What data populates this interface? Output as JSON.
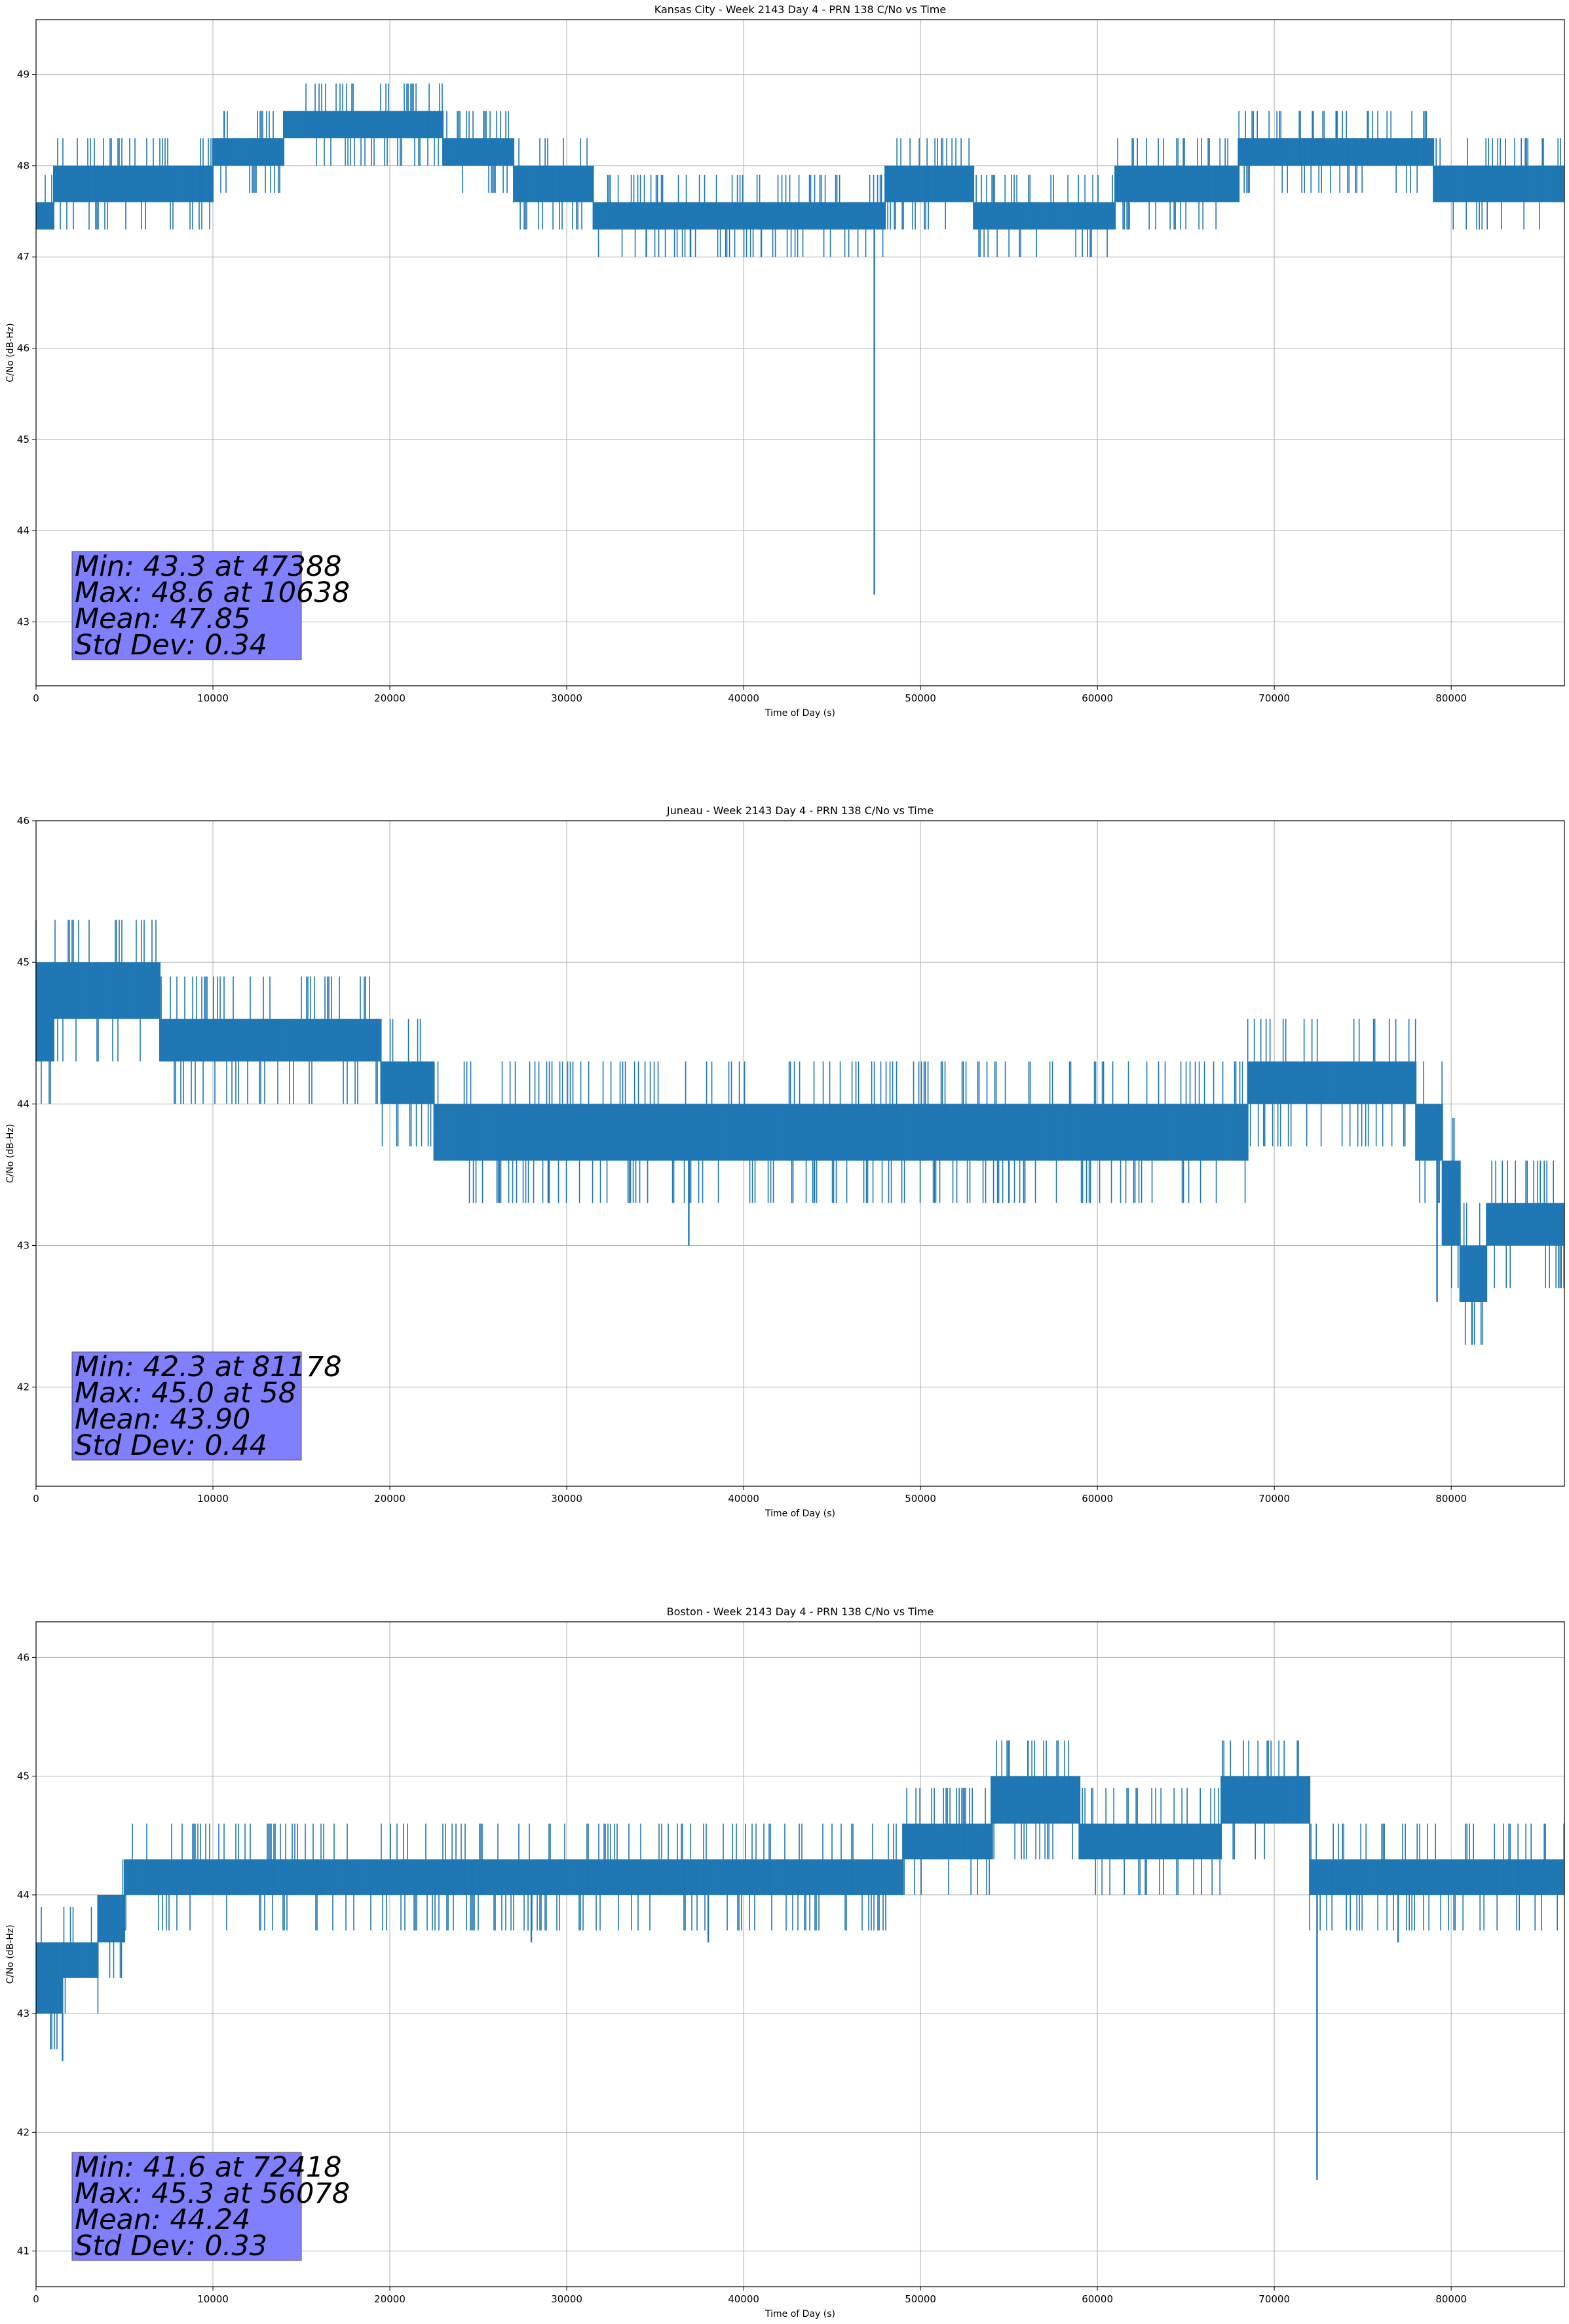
{
  "chart_data": [
    {
      "type": "line",
      "title": "Kansas City - Week 2143 Day 4 - PRN 138 C/No vs Time",
      "xlabel": "Time of Day (s)",
      "ylabel": "C/No (dB-Hz)",
      "xlim": [
        0,
        86400
      ],
      "ylim": [
        42.3,
        49.6
      ],
      "xticks": [
        0,
        10000,
        20000,
        30000,
        40000,
        50000,
        60000,
        70000,
        80000
      ],
      "yticks": [
        43,
        44,
        45,
        46,
        47,
        48,
        49
      ],
      "grid": true,
      "series_color": "#1f77b4",
      "stats": [
        "Min: 43.3 at 47388",
        "Max: 48.6 at 10638",
        "Mean: 47.85",
        "Std Dev: 0.34"
      ],
      "bands": [
        {
          "x": [
            0,
            1000
          ],
          "low": 47.3,
          "high": 47.6
        },
        {
          "x": [
            1000,
            10000
          ],
          "low": 47.6,
          "high": 48.0
        },
        {
          "x": [
            10000,
            14000
          ],
          "low": 48.0,
          "high": 48.3
        },
        {
          "x": [
            14000,
            23000
          ],
          "low": 48.3,
          "high": 48.6
        },
        {
          "x": [
            23000,
            27000
          ],
          "low": 48.0,
          "high": 48.3
        },
        {
          "x": [
            27000,
            31500
          ],
          "low": 47.6,
          "high": 48.0
        },
        {
          "x": [
            31500,
            48000
          ],
          "low": 47.3,
          "high": 47.6
        },
        {
          "x": [
            48000,
            53000
          ],
          "low": 47.6,
          "high": 48.0
        },
        {
          "x": [
            53000,
            61000
          ],
          "low": 47.3,
          "high": 47.6
        },
        {
          "x": [
            61000,
            68000
          ],
          "low": 47.6,
          "high": 48.0
        },
        {
          "x": [
            68000,
            79000
          ],
          "low": 48.0,
          "high": 48.3
        },
        {
          "x": [
            79000,
            86400
          ],
          "low": 47.6,
          "high": 48.0
        }
      ],
      "spikes": [
        {
          "x": 47388,
          "y": 43.3
        },
        {
          "x": 10638,
          "y": 48.6
        },
        {
          "x": 34500,
          "y": 47.0
        },
        {
          "x": 37000,
          "y": 47.0
        },
        {
          "x": 41000,
          "y": 47.0
        },
        {
          "x": 73500,
          "y": 48.6
        }
      ]
    },
    {
      "type": "line",
      "title": "Juneau - Week 2143 Day 4 - PRN 138 C/No vs Time",
      "xlabel": "Time of Day (s)",
      "ylabel": "C/No (dB-Hz)",
      "xlim": [
        0,
        86400
      ],
      "ylim": [
        41.3,
        46.0
      ],
      "xticks": [
        0,
        10000,
        20000,
        30000,
        40000,
        50000,
        60000,
        70000,
        80000
      ],
      "yticks": [
        42,
        43,
        44,
        45,
        46
      ],
      "grid": true,
      "series_color": "#1f77b4",
      "stats": [
        "Min: 42.3 at 81178",
        "Max: 45.0 at 58",
        "Mean: 43.90",
        "Std Dev: 0.44"
      ],
      "bands": [
        {
          "x": [
            0,
            1000
          ],
          "low": 44.3,
          "high": 45.0
        },
        {
          "x": [
            1000,
            7000
          ],
          "low": 44.6,
          "high": 45.0
        },
        {
          "x": [
            7000,
            19500
          ],
          "low": 44.3,
          "high": 44.6
        },
        {
          "x": [
            19500,
            22500
          ],
          "low": 44.0,
          "high": 44.3
        },
        {
          "x": [
            22500,
            68500
          ],
          "low": 43.6,
          "high": 44.0
        },
        {
          "x": [
            68500,
            78000
          ],
          "low": 44.0,
          "high": 44.3
        },
        {
          "x": [
            78000,
            79500
          ],
          "low": 43.6,
          "high": 44.0
        },
        {
          "x": [
            79500,
            80500
          ],
          "low": 43.0,
          "high": 43.6
        },
        {
          "x": [
            80500,
            82000
          ],
          "low": 42.6,
          "high": 43.0
        },
        {
          "x": [
            82000,
            86400
          ],
          "low": 43.0,
          "high": 43.3
        }
      ],
      "spikes": [
        {
          "x": 81178,
          "y": 42.3
        },
        {
          "x": 58,
          "y": 45.0
        },
        {
          "x": 36900,
          "y": 43.0
        },
        {
          "x": 29000,
          "y": 43.3
        },
        {
          "x": 44000,
          "y": 43.3
        },
        {
          "x": 55000,
          "y": 43.3
        },
        {
          "x": 79200,
          "y": 42.6
        }
      ]
    },
    {
      "type": "line",
      "title": "Boston - Week 2143 Day 4 - PRN 138 C/No vs Time",
      "xlabel": "Time of Day (s)",
      "ylabel": "C/No (dB-Hz)",
      "xlim": [
        0,
        86400
      ],
      "ylim": [
        40.7,
        46.3
      ],
      "xticks": [
        0,
        10000,
        20000,
        30000,
        40000,
        50000,
        60000,
        70000,
        80000
      ],
      "yticks": [
        41,
        42,
        43,
        44,
        45,
        46
      ],
      "grid": true,
      "series_color": "#1f77b4",
      "stats": [
        "Min: 41.6 at 72418",
        "Max: 45.3 at 56078",
        "Mean: 44.24",
        "Std Dev: 0.33"
      ],
      "bands": [
        {
          "x": [
            0,
            1500
          ],
          "low": 43.0,
          "high": 43.6
        },
        {
          "x": [
            1500,
            3500
          ],
          "low": 43.3,
          "high": 43.6
        },
        {
          "x": [
            3500,
            5000
          ],
          "low": 43.6,
          "high": 44.0
        },
        {
          "x": [
            5000,
            49000
          ],
          "low": 44.0,
          "high": 44.3
        },
        {
          "x": [
            49000,
            54000
          ],
          "low": 44.3,
          "high": 44.6
        },
        {
          "x": [
            54000,
            59000
          ],
          "low": 44.6,
          "high": 45.0
        },
        {
          "x": [
            59000,
            67000
          ],
          "low": 44.3,
          "high": 44.6
        },
        {
          "x": [
            67000,
            72000
          ],
          "low": 44.6,
          "high": 45.0
        },
        {
          "x": [
            72000,
            86400
          ],
          "low": 44.0,
          "high": 44.3
        }
      ],
      "spikes": [
        {
          "x": 72418,
          "y": 41.6
        },
        {
          "x": 56078,
          "y": 45.3
        },
        {
          "x": 1500,
          "y": 42.6
        },
        {
          "x": 28000,
          "y": 43.6
        },
        {
          "x": 38000,
          "y": 43.6
        },
        {
          "x": 77000,
          "y": 43.6
        }
      ]
    }
  ]
}
